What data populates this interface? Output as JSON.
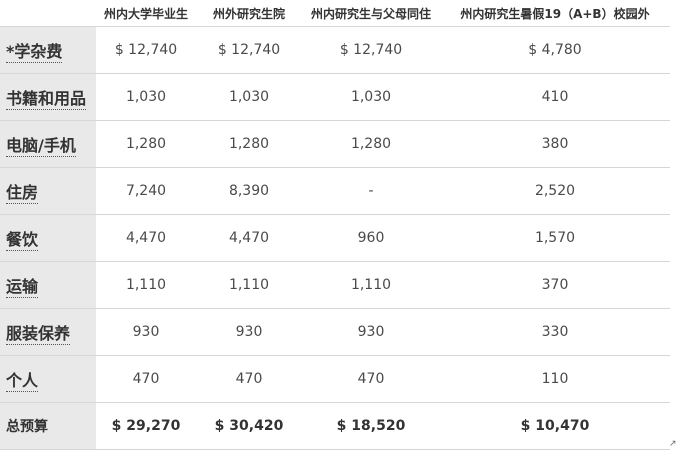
{
  "table": {
    "headers": [
      "",
      "州内大学毕业生",
      "州外研究生院",
      "州内研究生与父母同住",
      "州内研究生暑假19（A+B）校园外"
    ],
    "rows": [
      {
        "label": "*学杂费",
        "values": [
          "$ 12,740",
          "$ 12,740",
          "$ 12,740",
          "$ 4,780"
        ]
      },
      {
        "label": "书籍和用品",
        "values": [
          "1,030",
          "1,030",
          "1,030",
          "410"
        ]
      },
      {
        "label": "电脑/手机",
        "values": [
          "1,280",
          "1,280",
          "1,280",
          "380"
        ]
      },
      {
        "label": "住房",
        "values": [
          "7,240",
          "8,390",
          "-",
          "2,520"
        ]
      },
      {
        "label": "餐饮",
        "values": [
          "4,470",
          "4,470",
          "960",
          "1,570"
        ]
      },
      {
        "label": "运输",
        "values": [
          "1,110",
          "1,110",
          "1,110",
          "370"
        ]
      },
      {
        "label": "服装保养",
        "values": [
          "930",
          "930",
          "930",
          "330"
        ]
      },
      {
        "label": "个人",
        "values": [
          "470",
          "470",
          "470",
          "110"
        ]
      }
    ],
    "total": {
      "label": "总预算",
      "values": [
        "$ 29,270",
        "$ 30,420",
        "$ 18,520",
        "$ 10,470"
      ]
    }
  },
  "marker": "↗"
}
